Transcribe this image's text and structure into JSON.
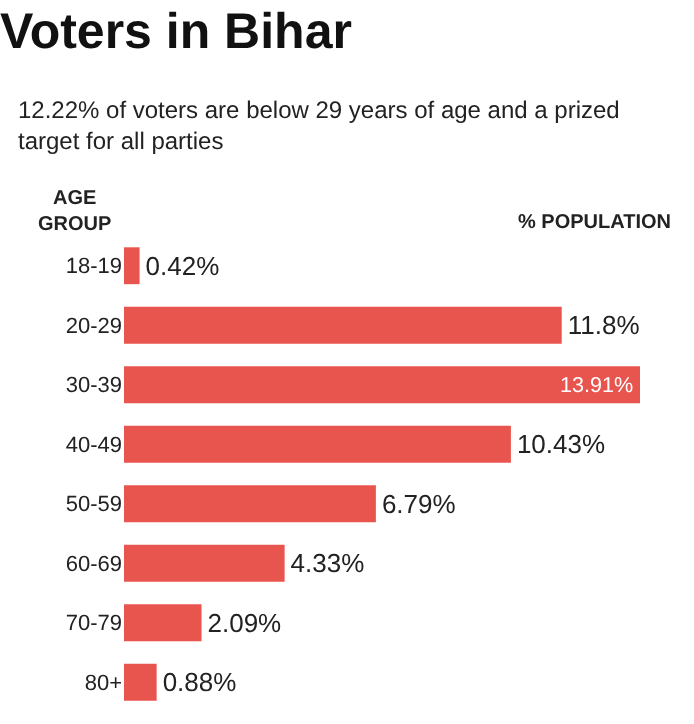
{
  "chart_data": {
    "type": "bar",
    "orientation": "horizontal",
    "title": "Voters in Bihar",
    "subtitle": "12.22% of voters are below 29 years of age and a prized target for all parties",
    "ylabel": "AGE GROUP",
    "xlabel": "% POPULATION",
    "categories": [
      "18-19",
      "20-29",
      "30-39",
      "40-49",
      "50-59",
      "60-69",
      "70-79",
      "80+"
    ],
    "values": [
      0.42,
      11.8,
      13.91,
      10.43,
      6.79,
      4.33,
      2.09,
      0.88
    ],
    "value_labels": [
      "0.42%",
      "11.8%",
      "13.91%",
      "10.43%",
      "6.79%",
      "4.33%",
      "2.09%",
      "0.88%"
    ],
    "color": "#e8554e"
  }
}
